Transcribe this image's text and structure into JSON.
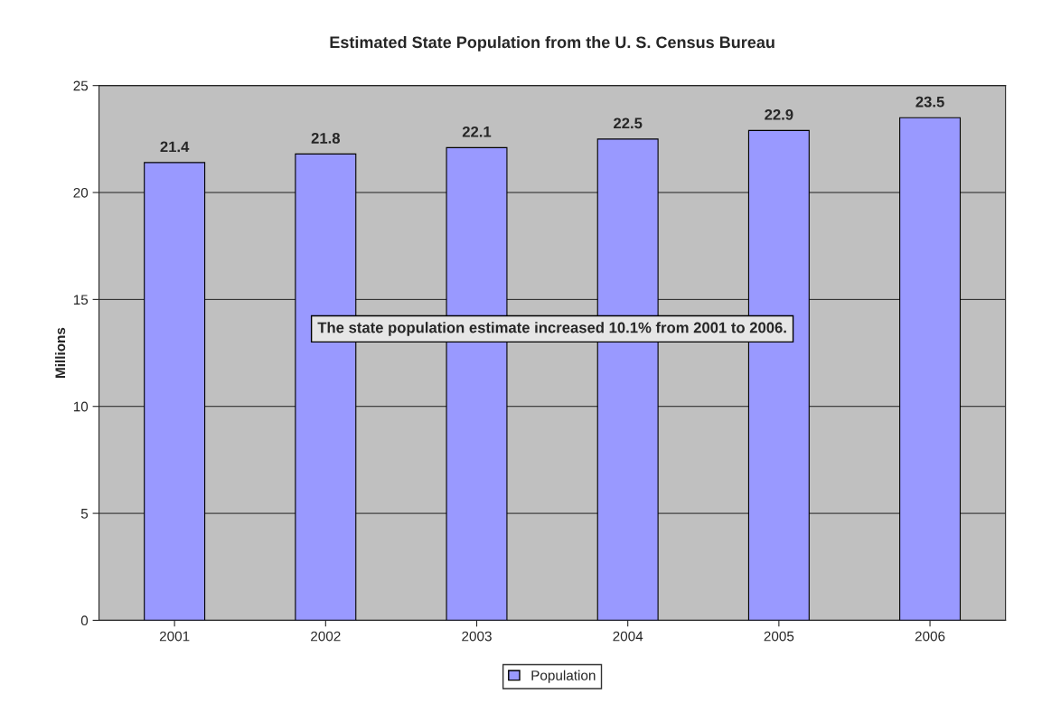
{
  "chart_data": {
    "type": "bar",
    "title": "Estimated State Population from the U. S. Census Bureau",
    "ylabel": "Millions",
    "categories": [
      "2001",
      "2002",
      "2003",
      "2004",
      "2005",
      "2006"
    ],
    "series": [
      {
        "name": "Population",
        "color": "#9999ff",
        "values": [
          21.4,
          21.8,
          22.1,
          22.5,
          22.9,
          23.5
        ]
      }
    ],
    "data_labels": true,
    "ylim": [
      0,
      25
    ],
    "yticks": [
      0,
      5,
      10,
      15,
      20,
      25
    ],
    "grid": "y",
    "legend": "bottom",
    "annotations": [
      "The state population estimate increased 10.1% from 2001 to 2006."
    ]
  }
}
